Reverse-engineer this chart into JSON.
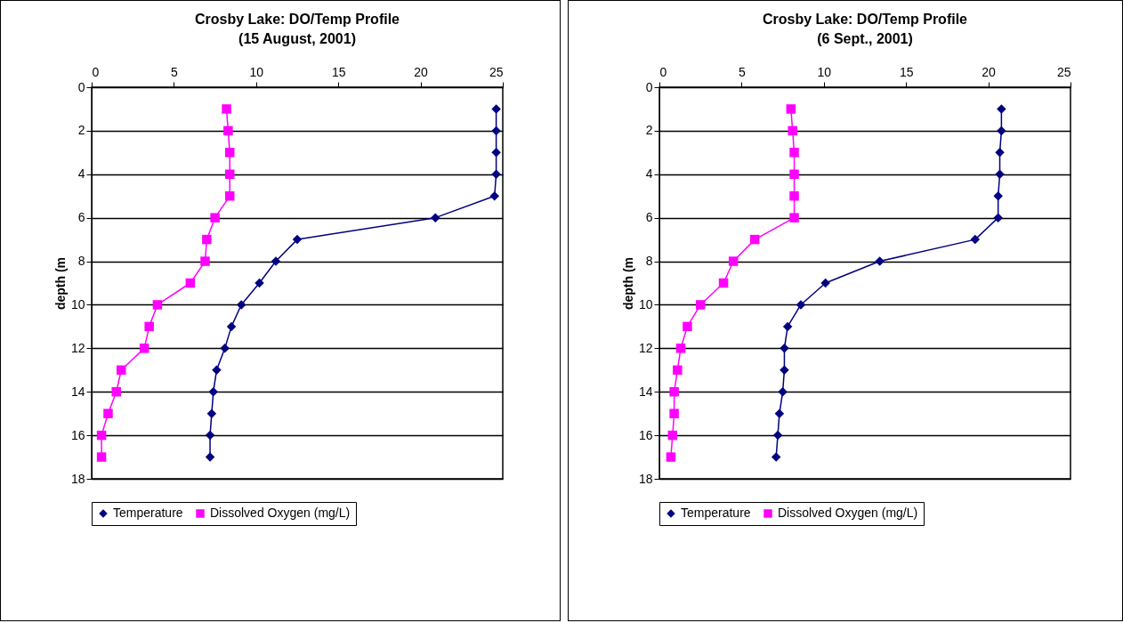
{
  "chart_data": [
    {
      "type": "line",
      "title": "Crosby Lake: DO/Temp Profile\n(15 August, 2001)",
      "ylabel": "depth (m",
      "xlim": [
        0,
        25
      ],
      "xticks": [
        0,
        5,
        10,
        15,
        20,
        25
      ],
      "ylim": [
        18,
        0
      ],
      "yticks": [
        0,
        2,
        4,
        6,
        8,
        10,
        12,
        14,
        16,
        18
      ],
      "grid": "y",
      "legend": "bottom",
      "series": [
        {
          "name": "Temperature",
          "color": "#000080",
          "marker": "diamond",
          "x": [
            24.6,
            24.6,
            24.6,
            24.6,
            24.5,
            20.9,
            12.5,
            11.2,
            10.2,
            9.1,
            8.5,
            8.1,
            7.6,
            7.4,
            7.3,
            7.2,
            7.2
          ],
          "values": [
            1,
            2,
            3,
            4,
            5,
            6,
            7,
            8,
            9,
            10,
            11,
            12,
            13,
            14,
            15,
            16,
            17
          ]
        },
        {
          "name": "Dissolved Oxygen (mg/L)",
          "color": "#ff00ff",
          "marker": "square",
          "x": [
            8.2,
            8.3,
            8.4,
            8.4,
            8.4,
            7.5,
            7.0,
            6.9,
            6.0,
            4.0,
            3.5,
            3.2,
            1.8,
            1.5,
            1.0,
            0.6,
            0.6
          ],
          "values": [
            1,
            2,
            3,
            4,
            5,
            6,
            7,
            8,
            9,
            10,
            11,
            12,
            13,
            14,
            15,
            16,
            17
          ]
        }
      ]
    },
    {
      "type": "line",
      "title": "Crosby Lake: DO/Temp Profile\n(6 Sept., 2001)",
      "ylabel": "depth (m",
      "xlim": [
        0,
        25
      ],
      "xticks": [
        0,
        5,
        10,
        15,
        20,
        25
      ],
      "ylim": [
        18,
        0
      ],
      "yticks": [
        0,
        2,
        4,
        6,
        8,
        10,
        12,
        14,
        16,
        18
      ],
      "grid": "y",
      "legend": "bottom",
      "series": [
        {
          "name": "Temperature",
          "color": "#000080",
          "marker": "diamond",
          "x": [
            20.8,
            20.8,
            20.7,
            20.7,
            20.6,
            20.6,
            19.2,
            13.4,
            10.1,
            8.6,
            7.8,
            7.6,
            7.6,
            7.5,
            7.3,
            7.2,
            7.1
          ],
          "values": [
            1,
            2,
            3,
            4,
            5,
            6,
            7,
            8,
            9,
            10,
            11,
            12,
            13,
            14,
            15,
            16,
            17
          ]
        },
        {
          "name": "Dissolved Oxygen (mg/L)",
          "color": "#ff00ff",
          "marker": "square",
          "x": [
            8.0,
            8.1,
            8.2,
            8.2,
            8.2,
            8.2,
            5.8,
            4.5,
            3.9,
            2.5,
            1.7,
            1.3,
            1.1,
            0.9,
            0.9,
            0.8,
            0.7
          ],
          "values": [
            1,
            2,
            3,
            4,
            5,
            6,
            7,
            8,
            9,
            10,
            11,
            12,
            13,
            14,
            15,
            16,
            17
          ]
        }
      ]
    }
  ]
}
